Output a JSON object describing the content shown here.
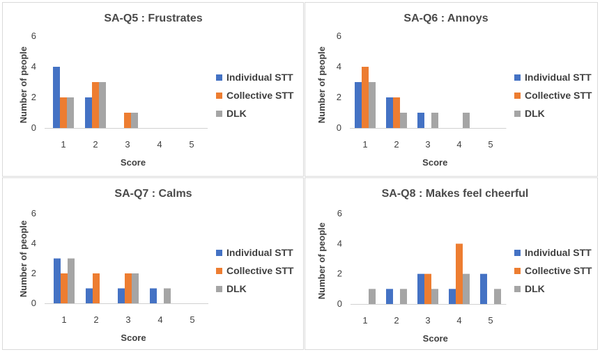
{
  "colors": {
    "individual": "#4472C4",
    "collective": "#ED7D31",
    "dlk": "#A5A5A5"
  },
  "chart_data": [
    {
      "type": "bar",
      "title": "SA-Q5  :  Frustrates",
      "xlabel": "Score",
      "ylabel": "Number of people",
      "categories": [
        "1",
        "2",
        "3",
        "4",
        "5"
      ],
      "ylim": [
        0,
        6
      ],
      "yticks": [
        "0",
        "2",
        "4",
        "6"
      ],
      "grid": false,
      "legend_position": "right",
      "series": [
        {
          "name": "Individual STT",
          "values": [
            4,
            2,
            0,
            0,
            0
          ]
        },
        {
          "name": "Collective STT",
          "values": [
            2,
            3,
            1,
            0,
            0
          ]
        },
        {
          "name": "DLK",
          "values": [
            2,
            3,
            1,
            0,
            0
          ]
        }
      ]
    },
    {
      "type": "bar",
      "title": "SA-Q6  :  Annoys",
      "xlabel": "Score",
      "ylabel": "Number of people",
      "categories": [
        "1",
        "2",
        "3",
        "4",
        "5"
      ],
      "ylim": [
        0,
        6
      ],
      "yticks": [
        "0",
        "2",
        "4",
        "6"
      ],
      "grid": false,
      "legend_position": "right",
      "series": [
        {
          "name": "Individual STT",
          "values": [
            3,
            2,
            1,
            0,
            0
          ]
        },
        {
          "name": "Collective STT",
          "values": [
            4,
            2,
            0,
            0,
            0
          ]
        },
        {
          "name": "DLK",
          "values": [
            3,
            1,
            1,
            1,
            0
          ]
        }
      ]
    },
    {
      "type": "bar",
      "title": "SA-Q7  :  Calms",
      "xlabel": "Score",
      "ylabel": "Number of people",
      "categories": [
        "1",
        "2",
        "3",
        "4",
        "5"
      ],
      "ylim": [
        0,
        6
      ],
      "yticks": [
        "0",
        "2",
        "4",
        "6"
      ],
      "grid": false,
      "legend_position": "right",
      "series": [
        {
          "name": "Individual STT",
          "values": [
            3,
            1,
            1,
            1,
            0
          ]
        },
        {
          "name": "Collective STT",
          "values": [
            2,
            2,
            2,
            0,
            0
          ]
        },
        {
          "name": "DLK",
          "values": [
            3,
            0,
            2,
            1,
            0
          ]
        }
      ]
    },
    {
      "type": "bar",
      "title": "SA-Q8  :  Makes feel cheerful",
      "xlabel": "Score",
      "ylabel": "Number of people",
      "categories": [
        "1",
        "2",
        "3",
        "4",
        "5"
      ],
      "ylim": [
        0,
        6
      ],
      "yticks": [
        "0",
        "2",
        "4",
        "6"
      ],
      "grid": false,
      "legend_position": "right",
      "series": [
        {
          "name": "Individual STT",
          "values": [
            0,
            1,
            2,
            1,
            2
          ]
        },
        {
          "name": "Collective STT",
          "values": [
            0,
            0,
            2,
            4,
            0
          ]
        },
        {
          "name": "DLK",
          "values": [
            1,
            1,
            1,
            2,
            1
          ]
        }
      ]
    }
  ]
}
